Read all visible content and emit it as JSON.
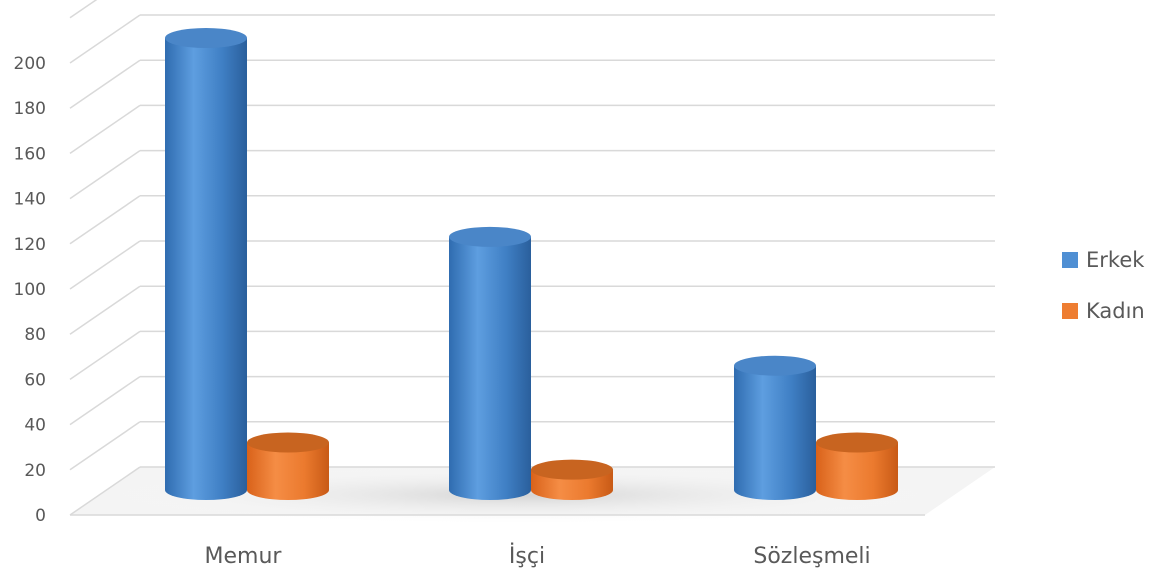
{
  "chart_data": {
    "type": "bar",
    "style": "3d-cylinder",
    "categories": [
      "Memur",
      "İşçi",
      "Sözleşmeli"
    ],
    "series": [
      {
        "name": "Erkek",
        "values": [
          200,
          112,
          55
        ],
        "color": "#4f8fd3"
      },
      {
        "name": "Kadın",
        "values": [
          21,
          9,
          21
        ],
        "color": "#ee7d31"
      }
    ],
    "yticks": [
      "0",
      "20",
      "40",
      "60",
      "80",
      "100",
      "120",
      "140",
      "160",
      "180",
      "200"
    ],
    "ylim": [
      0,
      220
    ],
    "grid": true,
    "legend": "right"
  }
}
